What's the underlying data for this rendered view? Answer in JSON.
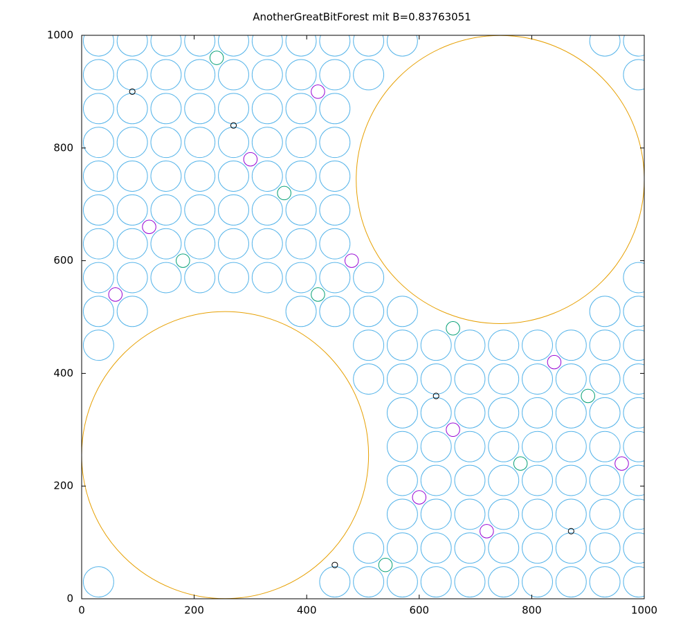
{
  "chart_data": {
    "type": "circles",
    "title": "AnotherGreatBitForest mit B=0.83763051",
    "xlim": [
      0,
      1000
    ],
    "ylim": [
      0,
      1000
    ],
    "xticks": [
      0,
      200,
      400,
      600,
      800,
      1000
    ],
    "yticks": [
      0,
      200,
      400,
      600,
      800,
      1000
    ],
    "series": [
      {
        "color": "#e69f00",
        "x": [
          255,
          744
        ],
        "y": [
          255,
          744
        ],
        "r": [
          255,
          256
        ]
      },
      {
        "color": "#56b4e9",
        "r": 27,
        "x": [
          30,
          450,
          510,
          570,
          630,
          690,
          750,
          810,
          870,
          930,
          990,
          510,
          570,
          630,
          690,
          750,
          810,
          870,
          930,
          990,
          570,
          630,
          690,
          750,
          810,
          870,
          930,
          990,
          570,
          630,
          690,
          750,
          810,
          870,
          930,
          990,
          570,
          630,
          690,
          750,
          810,
          870,
          930,
          990,
          570,
          630,
          690,
          750,
          810,
          870,
          930,
          990,
          510,
          570,
          630,
          690,
          750,
          810,
          870,
          930,
          990,
          30,
          510,
          570,
          630,
          690,
          750,
          810,
          870,
          930,
          990,
          30,
          90,
          390,
          450,
          510,
          570,
          930,
          990,
          30,
          90,
          150,
          210,
          270,
          330,
          390,
          450,
          510,
          990,
          30,
          90,
          150,
          210,
          270,
          330,
          390,
          450,
          30,
          90,
          150,
          210,
          270,
          330,
          390,
          450,
          30,
          90,
          150,
          210,
          270,
          330,
          390,
          450,
          30,
          90,
          150,
          210,
          270,
          330,
          390,
          450,
          30,
          90,
          150,
          210,
          270,
          330,
          390,
          450,
          30,
          90,
          150,
          210,
          270,
          330,
          390,
          450,
          510,
          990,
          30,
          90,
          150,
          210,
          270,
          330,
          390,
          450,
          510,
          570,
          930,
          990
        ],
        "y": [
          30,
          30,
          30,
          30,
          30,
          30,
          30,
          30,
          30,
          30,
          30,
          90,
          90,
          90,
          90,
          90,
          90,
          90,
          90,
          90,
          150,
          150,
          150,
          150,
          150,
          150,
          150,
          150,
          210,
          210,
          210,
          210,
          210,
          210,
          210,
          210,
          270,
          270,
          270,
          270,
          270,
          270,
          270,
          270,
          330,
          330,
          330,
          330,
          330,
          330,
          330,
          330,
          390,
          390,
          390,
          390,
          390,
          390,
          390,
          390,
          390,
          450,
          450,
          450,
          450,
          450,
          450,
          450,
          450,
          450,
          450,
          510,
          510,
          510,
          510,
          510,
          510,
          510,
          510,
          570,
          570,
          570,
          570,
          570,
          570,
          570,
          570,
          570,
          570,
          630,
          630,
          630,
          630,
          630,
          630,
          630,
          630,
          690,
          690,
          690,
          690,
          690,
          690,
          690,
          690,
          750,
          750,
          750,
          750,
          750,
          750,
          750,
          750,
          810,
          810,
          810,
          810,
          810,
          810,
          810,
          810,
          870,
          870,
          870,
          870,
          870,
          870,
          870,
          870,
          930,
          930,
          930,
          930,
          930,
          930,
          930,
          930,
          930,
          930,
          990,
          990,
          990,
          990,
          990,
          990,
          990,
          990,
          990,
          990,
          990,
          990
        ]
      },
      {
        "color": "#9400d3",
        "r": 12,
        "x": [
          600,
          660,
          840,
          480,
          120,
          300,
          420,
          960,
          720,
          60
        ],
        "y": [
          180,
          300,
          420,
          600,
          660,
          780,
          900,
          240,
          120,
          540
        ]
      },
      {
        "color": "#009e73",
        "r": 12,
        "x": [
          540,
          900,
          180,
          360,
          240,
          780,
          660,
          420
        ],
        "y": [
          60,
          360,
          600,
          720,
          960,
          240,
          480,
          540
        ]
      },
      {
        "color": "#000000",
        "r": 5,
        "x": [
          450,
          630,
          90,
          270,
          870
        ],
        "y": [
          60,
          360,
          900,
          840,
          120
        ]
      }
    ]
  }
}
